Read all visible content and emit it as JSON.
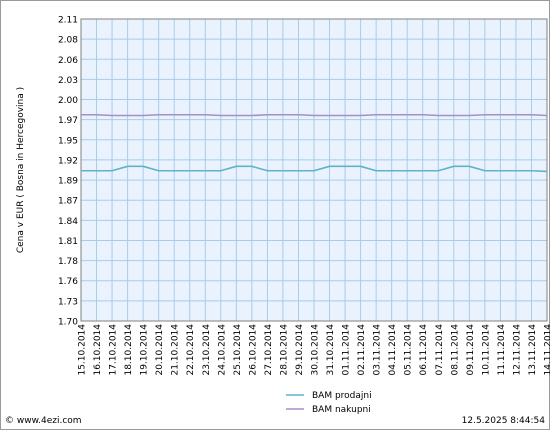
{
  "chart_data": {
    "type": "line",
    "ylabel": "Cena v EUR ( Bosna in Hercegovina )",
    "ylim": [
      1.7,
      2.11
    ],
    "yticks": [
      "2.11",
      "2.08",
      "2.06",
      "2.03",
      "2.00",
      "1.97",
      "1.95",
      "1.92",
      "1.89",
      "1.87",
      "1.84",
      "1.81",
      "1.78",
      "1.76",
      "1.73",
      "1.70"
    ],
    "categories": [
      "15.10.2014",
      "16.10.2014",
      "17.10.2014",
      "18.10.2014",
      "19.10.2014",
      "20.10.2014",
      "21.10.2014",
      "22.10.2014",
      "23.10.2014",
      "24.10.2014",
      "25.10.2014",
      "26.10.2014",
      "27.10.2014",
      "28.10.2014",
      "29.10.2014",
      "30.10.2014",
      "31.10.2014",
      "01.11.2014",
      "02.11.2014",
      "03.11.2014",
      "04.11.2014",
      "05.11.2014",
      "06.11.2014",
      "07.11.2014",
      "08.11.2014",
      "09.11.2014",
      "10.11.2014",
      "11.11.2014",
      "12.11.2014",
      "13.11.2014",
      "14.11.2014"
    ],
    "series": [
      {
        "name": "BAM prodajni",
        "color": "#5fb3c8",
        "values": [
          1.904,
          1.904,
          1.904,
          1.91,
          1.91,
          1.904,
          1.904,
          1.904,
          1.904,
          1.904,
          1.91,
          1.91,
          1.904,
          1.904,
          1.904,
          1.904,
          1.91,
          1.91,
          1.91,
          1.904,
          1.904,
          1.904,
          1.904,
          1.904,
          1.91,
          1.91,
          1.904,
          1.904,
          1.904,
          1.904,
          1.903
        ]
      },
      {
        "name": "BAM nakupni",
        "color": "#a58fc8",
        "values": [
          1.98,
          1.98,
          1.979,
          1.979,
          1.979,
          1.98,
          1.98,
          1.98,
          1.98,
          1.979,
          1.979,
          1.979,
          1.98,
          1.98,
          1.98,
          1.979,
          1.979,
          1.979,
          1.979,
          1.98,
          1.98,
          1.98,
          1.98,
          1.979,
          1.979,
          1.979,
          1.98,
          1.98,
          1.98,
          1.98,
          1.979
        ]
      }
    ],
    "grid": true,
    "legend_position": "bottom-center"
  },
  "footer": {
    "source": "© www.4ezi.com",
    "timestamp": "12.5.2025  8:44:54"
  },
  "colors": {
    "plot_bg": "#eaf3fd",
    "grid": "#a7cce8"
  }
}
